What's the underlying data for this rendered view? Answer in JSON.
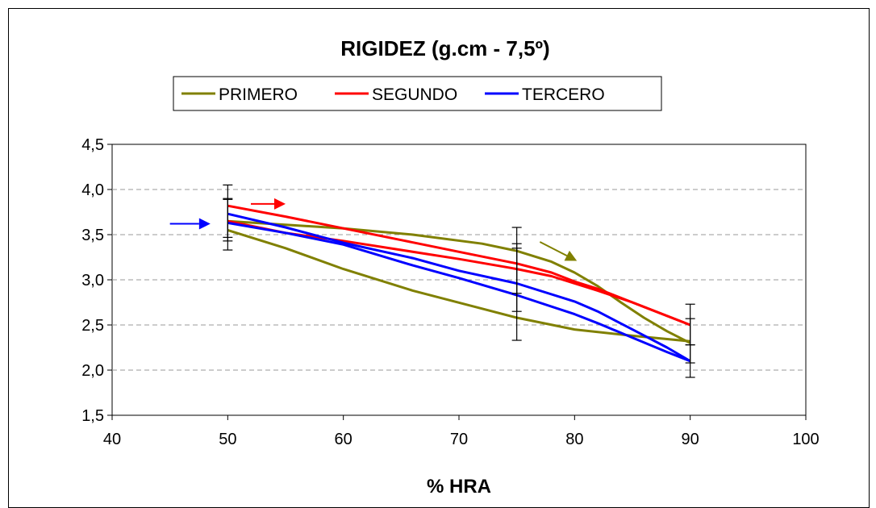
{
  "chart_data": {
    "type": "line",
    "title": "RIGIDEZ (g.cm - 7,5º)",
    "xlabel": "% HRA",
    "ylabel": "",
    "xlim": [
      40,
      100
    ],
    "ylim": [
      1.5,
      4.5
    ],
    "x_ticks": [
      "40",
      "50",
      "60",
      "70",
      "80",
      "90",
      "100"
    ],
    "y_ticks": [
      "1,5",
      "2,0",
      "2,5",
      "3,0",
      "3,5",
      "4,0",
      "4,5"
    ],
    "grid": "horizontal dashed",
    "legend_position": "top",
    "series": [
      {
        "name": "PRIMERO",
        "color": "#808000",
        "upper": [
          [
            50,
            3.65
          ],
          [
            60,
            3.57
          ],
          [
            66,
            3.5
          ],
          [
            72,
            3.4
          ],
          [
            75,
            3.32
          ],
          [
            78,
            3.2
          ],
          [
            80,
            3.08
          ],
          [
            82,
            2.93
          ],
          [
            84,
            2.75
          ],
          [
            86,
            2.58
          ],
          [
            88,
            2.43
          ],
          [
            90,
            2.3
          ]
        ],
        "lower": [
          [
            50,
            3.55
          ],
          [
            55,
            3.35
          ],
          [
            60,
            3.12
          ],
          [
            66,
            2.88
          ],
          [
            72,
            2.68
          ],
          [
            75,
            2.58
          ],
          [
            80,
            2.45
          ],
          [
            85,
            2.38
          ],
          [
            90,
            2.32
          ]
        ],
        "error_bars": [
          {
            "x": 50,
            "low": 3.33,
            "high": 3.89
          },
          {
            "x": 75,
            "low": 2.33,
            "high": 3.58
          },
          {
            "x": 90,
            "low": 2.08,
            "high": 2.57
          }
        ]
      },
      {
        "name": "SEGUNDO",
        "color": "#ff0000",
        "upper": [
          [
            50,
            3.82
          ],
          [
            55,
            3.7
          ],
          [
            60,
            3.57
          ],
          [
            65,
            3.44
          ],
          [
            70,
            3.31
          ],
          [
            75,
            3.18
          ],
          [
            78,
            3.08
          ],
          [
            80,
            2.98
          ],
          [
            82,
            2.9
          ],
          [
            85,
            2.75
          ],
          [
            90,
            2.5
          ]
        ],
        "lower": [
          [
            50,
            3.65
          ],
          [
            55,
            3.52
          ],
          [
            60,
            3.43
          ],
          [
            65,
            3.33
          ],
          [
            70,
            3.23
          ],
          [
            75,
            3.12
          ],
          [
            78,
            3.04
          ],
          [
            80,
            2.96
          ],
          [
            82,
            2.88
          ],
          [
            85,
            2.75
          ],
          [
            90,
            2.5
          ]
        ],
        "error_bars": [
          {
            "x": 50,
            "low": 3.47,
            "high": 4.05
          },
          {
            "x": 75,
            "low": 2.85,
            "high": 3.4
          },
          {
            "x": 90,
            "low": 2.28,
            "high": 2.73
          }
        ]
      },
      {
        "name": "TERCERO",
        "color": "#0000ff",
        "upper": [
          [
            50,
            3.73
          ],
          [
            55,
            3.58
          ],
          [
            60,
            3.41
          ],
          [
            66,
            3.24
          ],
          [
            70,
            3.1
          ],
          [
            75,
            2.96
          ],
          [
            80,
            2.76
          ],
          [
            82,
            2.65
          ],
          [
            85,
            2.45
          ],
          [
            88,
            2.25
          ],
          [
            90,
            2.1
          ]
        ],
        "lower": [
          [
            50,
            3.63
          ],
          [
            55,
            3.52
          ],
          [
            60,
            3.39
          ],
          [
            66,
            3.16
          ],
          [
            70,
            3.02
          ],
          [
            75,
            2.83
          ],
          [
            80,
            2.62
          ],
          [
            82,
            2.52
          ],
          [
            85,
            2.36
          ],
          [
            88,
            2.2
          ],
          [
            90,
            2.1
          ]
        ],
        "error_bars": [
          {
            "x": 50,
            "low": 3.43,
            "high": 3.9
          },
          {
            "x": 75,
            "low": 2.65,
            "high": 3.35
          },
          {
            "x": 90,
            "low": 1.92,
            "high": 2.28
          }
        ]
      }
    ],
    "arrows": [
      {
        "color": "#0000ff",
        "direction": "right",
        "x_from": 45.0,
        "x_to": 48.5,
        "y": 3.62
      },
      {
        "color": "#ff0000",
        "direction": "right",
        "x_from": 52.0,
        "x_to": 55.0,
        "y": 3.84
      },
      {
        "color": "#808000",
        "direction": "down-right",
        "x_from": 77.0,
        "x_to": 80.2,
        "y_from": 3.42,
        "y_to": 3.21
      }
    ]
  }
}
